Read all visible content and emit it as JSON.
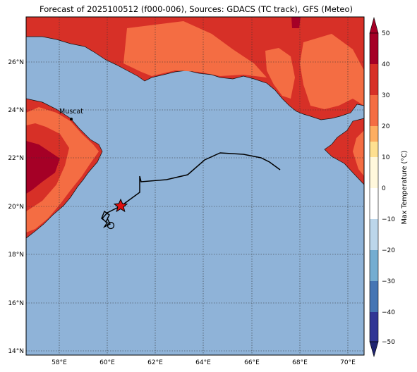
{
  "title": "Forecast of 2025100512 (f000-006), Sources: GDACS (TC track), GFS (Meteo)",
  "map": {
    "lon_range": [
      56.8,
      70.7
    ],
    "lat_range": [
      13.8,
      27.9
    ],
    "lon_ticks": [
      "58°E",
      "60°E",
      "62°E",
      "64°E",
      "66°E",
      "68°E",
      "70°E"
    ],
    "lat_ticks": [
      "14°N",
      "16°N",
      "18°N",
      "20°N",
      "22°N",
      "24°N",
      "26°N"
    ],
    "grid": true,
    "ocean_color": "#8fb3d8"
  },
  "city": {
    "name": "Muscat",
    "lon": 58.55,
    "lat": 23.6
  },
  "storm": {
    "symbol": "star",
    "lon": 60.6,
    "lat": 20.0,
    "color": "#e01010"
  },
  "colorbar": {
    "label": "Max Temperature (°C)",
    "ticks": [
      "50",
      "40",
      "30",
      "20",
      "10",
      "0",
      "−10",
      "−20",
      "−30",
      "−40",
      "−50"
    ],
    "range": [
      -50,
      50
    ],
    "colors": [
      "#1f2a8a",
      "#2f5aa6",
      "#4a7ab8",
      "#6d9cc8",
      "#94bbdc",
      "#bcd6ea",
      "#ffffff",
      "#fff7cf",
      "#fdd390",
      "#f99d5a",
      "#ee6a3e",
      "#d73027",
      "#a50026"
    ]
  }
}
